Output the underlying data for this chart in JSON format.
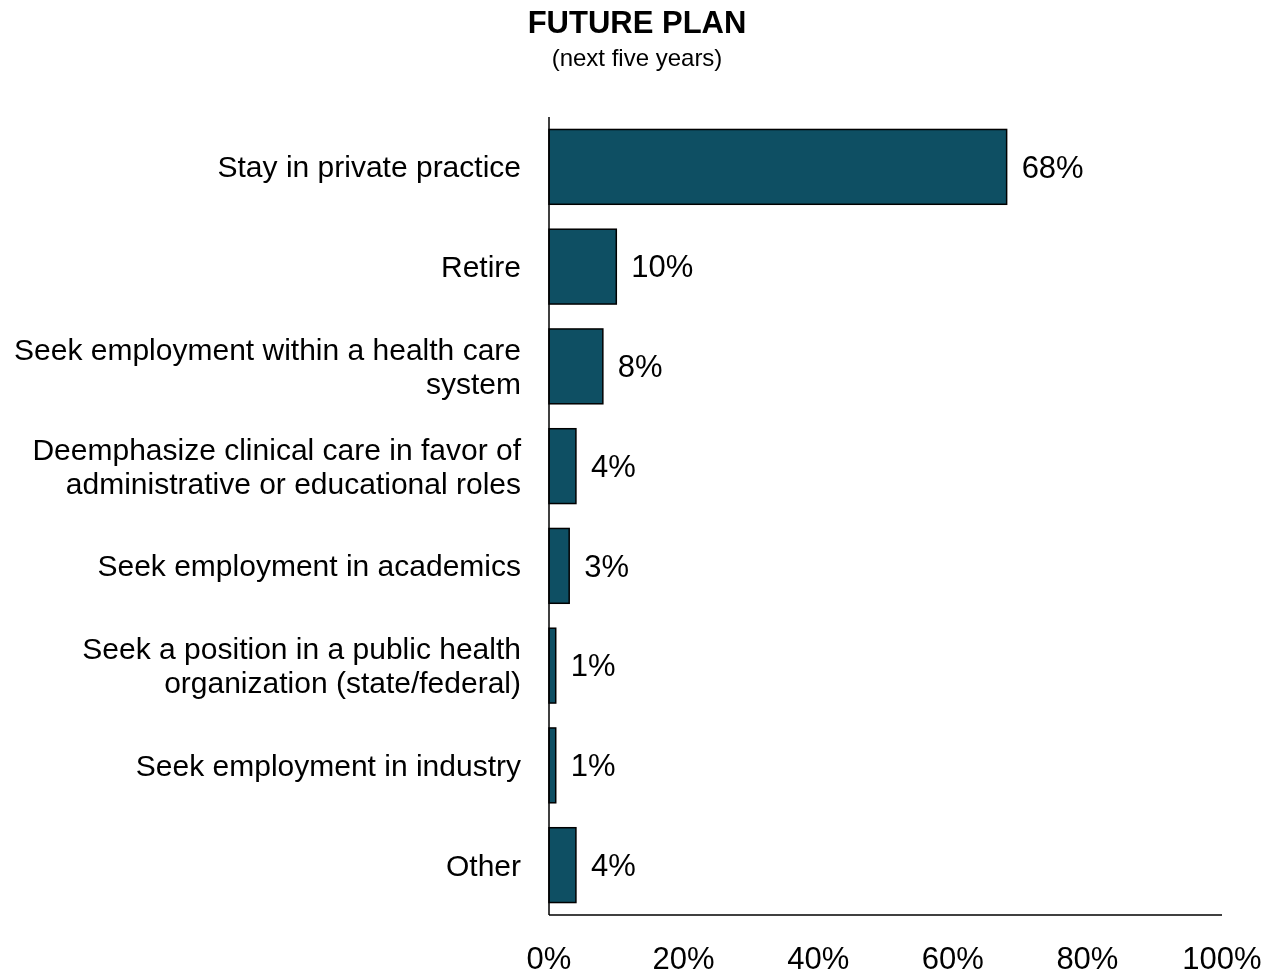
{
  "chart_data": {
    "type": "bar",
    "orientation": "horizontal",
    "title": "FUTURE PLAN",
    "subtitle": "(next five years)",
    "categories": [
      "Stay in private practice",
      "Retire",
      "Seek employment within a health care system",
      "Deemphasize clinical care in favor of administrative or educational roles",
      "Seek employment in academics",
      "Seek a position in a public health organization (state/federal)",
      "Seek employment in industry",
      "Other"
    ],
    "values": [
      68,
      10,
      8,
      4,
      3,
      1,
      1,
      4
    ],
    "value_labels": [
      "68%",
      "10%",
      "8%",
      "4%",
      "3%",
      "1%",
      "1%",
      "4%"
    ],
    "color": "#0e4f63",
    "xlim": [
      0,
      100
    ],
    "xticks": [
      {
        "value": 0,
        "label": "0%"
      },
      {
        "value": 20,
        "label": "20%"
      },
      {
        "value": 40,
        "label": "40%"
      },
      {
        "value": 60,
        "label": "60%"
      },
      {
        "value": 80,
        "label": "80%"
      },
      {
        "value": 100,
        "label": "100%"
      }
    ],
    "grid": false
  }
}
